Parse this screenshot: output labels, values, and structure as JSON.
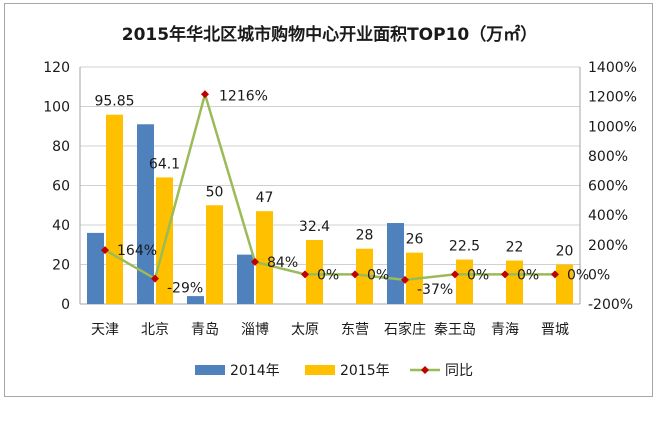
{
  "chart_data": {
    "type": "bar",
    "title": "2015年华北区城市购物中心开业面积TOP10（万㎡）",
    "categories": [
      "天津",
      "北京",
      "青岛",
      "淄博",
      "太原",
      "东营",
      "石家庄",
      "秦王岛",
      "青海",
      "晋城"
    ],
    "series": [
      {
        "name": "2014年",
        "type": "bar",
        "axis": "left",
        "color": "#4f81bd",
        "values": [
          36,
          91,
          4,
          25,
          0,
          0,
          41,
          0,
          0,
          0
        ]
      },
      {
        "name": "2015年",
        "type": "bar",
        "axis": "left",
        "color": "#ffc000",
        "values": [
          95.85,
          64.1,
          50,
          47,
          32.4,
          28,
          26,
          22.5,
          22,
          20
        ],
        "labels": [
          "95.85",
          "64.1",
          "50",
          "47",
          "32.4",
          "28",
          "26",
          "22.5",
          "22",
          "20"
        ]
      },
      {
        "name": "同比",
        "type": "line",
        "axis": "right",
        "color": "#9bbb59",
        "marker_color": "#c00000",
        "values": [
          164,
          -29,
          1216,
          84,
          0,
          0,
          -37,
          0,
          0,
          0
        ],
        "labels": [
          "164%",
          "-29%",
          "1216%",
          "84%",
          "0%",
          "0%",
          "-37%",
          "0%",
          "0%",
          "0%"
        ]
      }
    ],
    "ylim": [
      0,
      120
    ],
    "yticks": [
      "0",
      "20",
      "40",
      "60",
      "80",
      "100",
      "120"
    ],
    "y2lim": [
      -200,
      1400
    ],
    "y2ticks": [
      "-200%",
      "0%",
      "200%",
      "400%",
      "600%",
      "800%",
      "1000%",
      "1200%",
      "1400%"
    ],
    "grid": true,
    "legend": "bottom"
  }
}
